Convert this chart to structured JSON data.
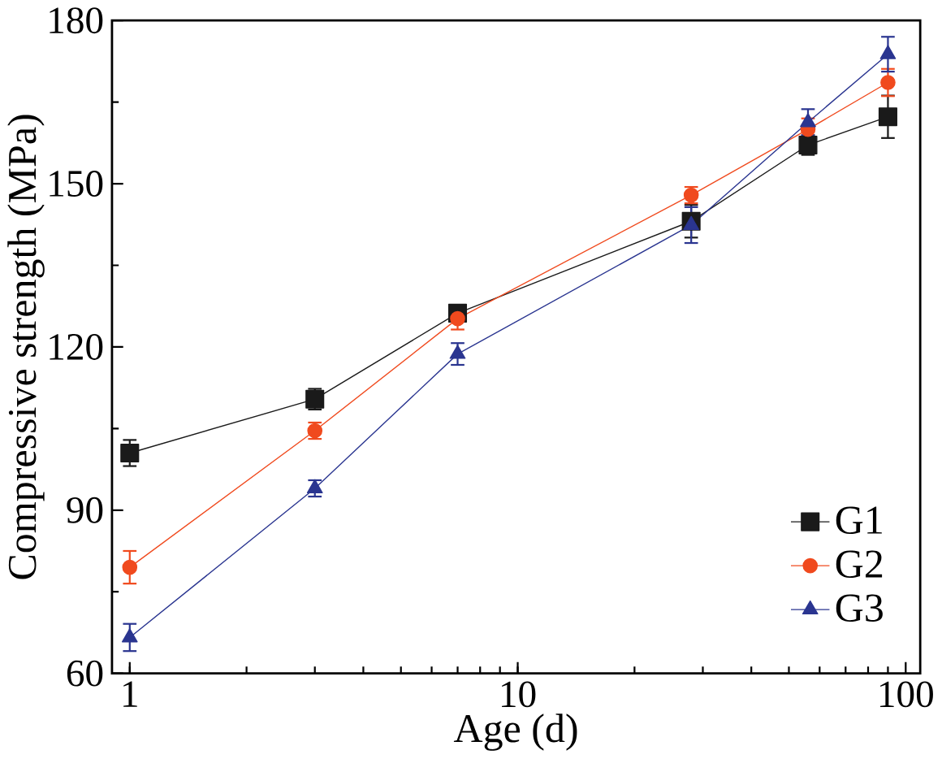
{
  "chart_data": {
    "type": "line",
    "xlabel": "Age (d)",
    "ylabel": "Compressive strength (MPa)",
    "log": "x",
    "xlim": [
      0.9,
      109
    ],
    "ylim": [
      60,
      180
    ],
    "xticks": [
      1,
      10,
      100
    ],
    "yticks": [
      60,
      90,
      120,
      150,
      180
    ],
    "grid": false,
    "legend": "bottom right",
    "line_style": "solid",
    "series": [
      {
        "name": "G1",
        "color": "#1a1a1a",
        "marker": "square",
        "x": [
          1,
          3,
          7,
          28,
          56,
          90
        ],
        "values": [
          100.5,
          110.4,
          126.2,
          143.1,
          157.1,
          162.3
        ],
        "errors": [
          2.4,
          1.9,
          1.5,
          3,
          1.8,
          3.9
        ]
      },
      {
        "name": "G2",
        "color": "#f04a1e",
        "marker": "circle",
        "x": [
          1,
          3,
          7,
          28,
          56,
          90
        ],
        "values": [
          79.5,
          104.6,
          125.2,
          147.9,
          160,
          168.6
        ],
        "errors": [
          3,
          1.5,
          2,
          1.5,
          2,
          2.5
        ]
      },
      {
        "name": "G3",
        "color": "#2a3590",
        "marker": "triangle",
        "x": [
          1,
          3,
          7,
          28,
          56,
          90
        ],
        "values": [
          66.6,
          94,
          118.7,
          142.4,
          161.3,
          173.8
        ],
        "errors": [
          2.5,
          1.5,
          2,
          3.3,
          2.4,
          3.2
        ]
      }
    ]
  }
}
